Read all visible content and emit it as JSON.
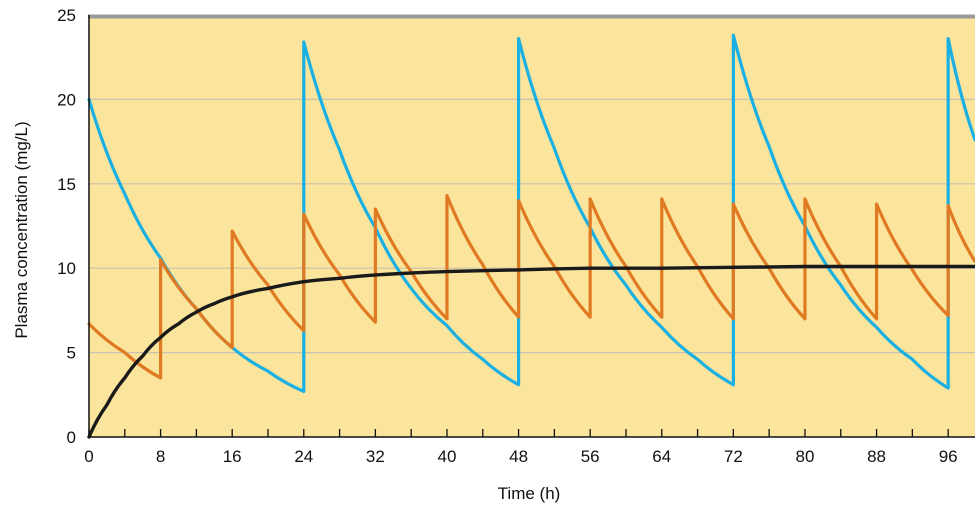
{
  "chart_data": {
    "type": "line",
    "xlabel": "Time (h)",
    "ylabel": "Plasma concentration (mg/L)",
    "xlim": [
      0,
      99
    ],
    "ylim": [
      0,
      25
    ],
    "x_ticks": [
      0,
      8,
      16,
      24,
      32,
      40,
      48,
      56,
      64,
      72,
      80,
      88,
      96
    ],
    "x_tick_labels": [
      "0",
      "8",
      "16",
      "24",
      "32",
      "40",
      "48",
      "56",
      "64",
      "72",
      "80",
      "88",
      "96"
    ],
    "x_minor_step": 4,
    "y_ticks": [
      0,
      5,
      10,
      15,
      20,
      25
    ],
    "y_tick_labels": [
      "0",
      "5",
      "10",
      "15",
      "20",
      "25"
    ],
    "grid": "horizontal",
    "background_color": "#fbe49b",
    "top_border_color": "#9a9a9a",
    "gridline_color": "#c9c2ae",
    "series": [
      {
        "color": "#1ab0e3",
        "points": [
          [
            0,
            20.0
          ],
          [
            4,
            14.4
          ],
          [
            8,
            10.6
          ],
          [
            12,
            7.6
          ],
          [
            16,
            5.3
          ],
          [
            20,
            3.9
          ],
          [
            24,
            2.7
          ],
          [
            24,
            23.4
          ],
          [
            28,
            17.0
          ],
          [
            32,
            12.4
          ],
          [
            36,
            8.8
          ],
          [
            40,
            6.6
          ],
          [
            44,
            4.6
          ],
          [
            48,
            3.1
          ],
          [
            48,
            23.6
          ],
          [
            52,
            17.1
          ],
          [
            56,
            12.4
          ],
          [
            60,
            9.0
          ],
          [
            64,
            6.5
          ],
          [
            68,
            4.6
          ],
          [
            72,
            3.1
          ],
          [
            72,
            23.8
          ],
          [
            76,
            17.2
          ],
          [
            80,
            12.5
          ],
          [
            84,
            9.0
          ],
          [
            88,
            6.5
          ],
          [
            92,
            4.6
          ],
          [
            96,
            2.9
          ],
          [
            96,
            23.6
          ],
          [
            99,
            17.6
          ]
        ]
      },
      {
        "color": "#e07a22",
        "points": [
          [
            0,
            6.7
          ],
          [
            4,
            5.0
          ],
          [
            8,
            3.5
          ],
          [
            8,
            10.5
          ],
          [
            12,
            7.6
          ],
          [
            16,
            5.3
          ],
          [
            16,
            12.2
          ],
          [
            20,
            9.0
          ],
          [
            24,
            6.3
          ],
          [
            24,
            13.2
          ],
          [
            28,
            9.6
          ],
          [
            32,
            6.8
          ],
          [
            32,
            13.5
          ],
          [
            36,
            9.8
          ],
          [
            40,
            7.0
          ],
          [
            40,
            14.3
          ],
          [
            44,
            10.2
          ],
          [
            48,
            7.1
          ],
          [
            48,
            14.0
          ],
          [
            52,
            10.1
          ],
          [
            56,
            7.1
          ],
          [
            56,
            14.1
          ],
          [
            60,
            10.1
          ],
          [
            64,
            7.1
          ],
          [
            64,
            14.1
          ],
          [
            68,
            10.1
          ],
          [
            72,
            7.0
          ],
          [
            72,
            13.8
          ],
          [
            76,
            10.0
          ],
          [
            80,
            7.0
          ],
          [
            80,
            14.1
          ],
          [
            84,
            10.1
          ],
          [
            88,
            7.0
          ],
          [
            88,
            13.8
          ],
          [
            92,
            9.9
          ],
          [
            96,
            7.2
          ],
          [
            96,
            13.7
          ],
          [
            99,
            10.4
          ]
        ]
      },
      {
        "color": "#1a1a1a",
        "points": [
          [
            0,
            0.0
          ],
          [
            2,
            1.9
          ],
          [
            4,
            3.5
          ],
          [
            6,
            4.8
          ],
          [
            8,
            5.9
          ],
          [
            10,
            6.7
          ],
          [
            12,
            7.4
          ],
          [
            14,
            7.9
          ],
          [
            16,
            8.3
          ],
          [
            18,
            8.6
          ],
          [
            20,
            8.8
          ],
          [
            24,
            9.2
          ],
          [
            28,
            9.4
          ],
          [
            32,
            9.6
          ],
          [
            40,
            9.8
          ],
          [
            48,
            9.9
          ],
          [
            56,
            10.0
          ],
          [
            64,
            10.0
          ],
          [
            72,
            10.05
          ],
          [
            80,
            10.1
          ],
          [
            88,
            10.1
          ],
          [
            96,
            10.1
          ],
          [
            99,
            10.1
          ]
        ]
      }
    ]
  }
}
